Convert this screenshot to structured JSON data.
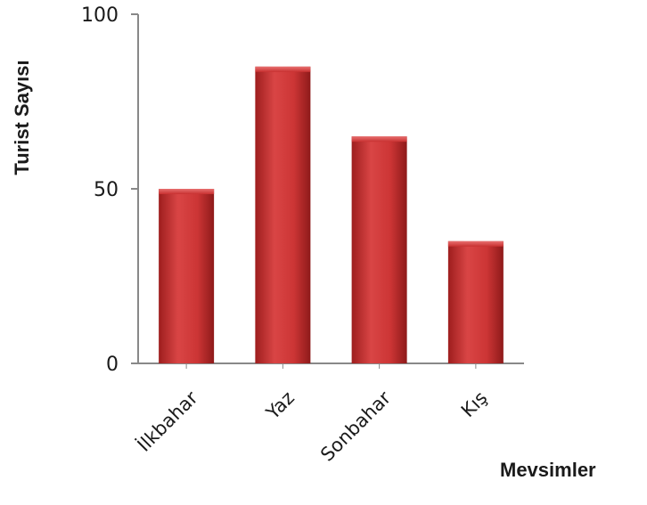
{
  "chart_data": {
    "type": "bar",
    "title": "",
    "xlabel": "Mevsimler",
    "ylabel": "Turist Sayısı",
    "categories": [
      "İlkbahar",
      "Yaz",
      "Sonbahar",
      "Kış"
    ],
    "values": [
      50,
      85,
      65,
      35
    ],
    "ylim": [
      0,
      100
    ],
    "yticks": [
      0,
      50,
      100
    ],
    "grid": false,
    "legend": "none",
    "bar_color": "#c8302f"
  }
}
